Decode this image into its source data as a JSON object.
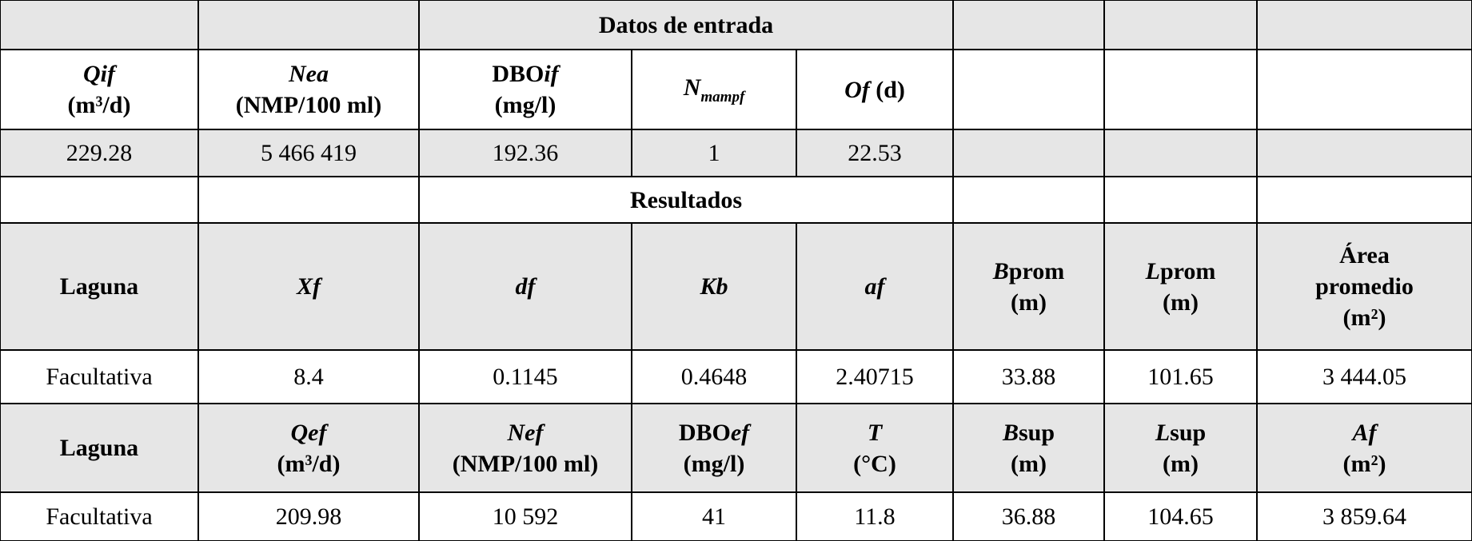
{
  "input": {
    "title": "Datos de entrada",
    "headers": [
      [
        [
          {
            "text": "Qif",
            "style": "italic"
          }
        ],
        [
          {
            "text": "(m³/d)"
          }
        ]
      ],
      [
        [
          {
            "text": "Nea",
            "style": "italic"
          }
        ],
        [
          {
            "text": "(NMP/100 ml)"
          }
        ]
      ],
      [
        [
          {
            "text": "DBO"
          },
          {
            "text": "if",
            "style": "italic"
          }
        ],
        [
          {
            "text": "(mg/l)"
          }
        ]
      ],
      [
        [
          {
            "text": "N",
            "style": "italic"
          },
          {
            "text": "mampf",
            "style": "sub"
          }
        ]
      ],
      [
        [
          {
            "text": "Of",
            "style": "italic"
          },
          {
            "text": " (d)"
          }
        ]
      ]
    ],
    "values": [
      "229.28",
      "5 466 419",
      "192.36",
      "1",
      "22.53"
    ]
  },
  "results": {
    "title": "Resultados",
    "blocks": [
      {
        "headers": [
          [
            [
              {
                "text": "Laguna"
              }
            ]
          ],
          [
            [
              {
                "text": "Xf",
                "style": "italic"
              }
            ]
          ],
          [
            [
              {
                "text": "df",
                "style": "italic"
              }
            ]
          ],
          [
            [
              {
                "text": "Kb",
                "style": "italic"
              }
            ]
          ],
          [
            [
              {
                "text": "af",
                "style": "italic"
              }
            ]
          ],
          [
            [
              {
                "text": "B",
                "style": "italic"
              },
              {
                "text": "prom"
              }
            ],
            [
              {
                "text": "(m)"
              }
            ]
          ],
          [
            [
              {
                "text": "L",
                "style": "italic"
              },
              {
                "text": "prom"
              }
            ],
            [
              {
                "text": "(m)"
              }
            ]
          ],
          [
            [
              {
                "text": "Área"
              }
            ],
            [
              {
                "text": "promedio"
              }
            ],
            [
              {
                "text": "(m²)"
              }
            ]
          ]
        ],
        "values": [
          "Facultativa",
          "8.4",
          "0.1145",
          "0.4648",
          "2.40715",
          "33.88",
          "101.65",
          "3 444.05"
        ]
      },
      {
        "headers": [
          [
            [
              {
                "text": "Laguna"
              }
            ]
          ],
          [
            [
              {
                "text": "Qef",
                "style": "italic"
              }
            ],
            [
              {
                "text": "(m³/d)"
              }
            ]
          ],
          [
            [
              {
                "text": "Nef",
                "style": "italic"
              }
            ],
            [
              {
                "text": "(NMP/100 ml)"
              }
            ]
          ],
          [
            [
              {
                "text": "DBO"
              },
              {
                "text": "ef",
                "style": "italic"
              }
            ],
            [
              {
                "text": "(mg/l)"
              }
            ]
          ],
          [
            [
              {
                "text": "T",
                "style": "italic"
              }
            ],
            [
              {
                "text": "(°C)"
              }
            ]
          ],
          [
            [
              {
                "text": "B",
                "style": "italic"
              },
              {
                "text": "sup"
              }
            ],
            [
              {
                "text": "(m)"
              }
            ]
          ],
          [
            [
              {
                "text": "L",
                "style": "italic"
              },
              {
                "text": "sup"
              }
            ],
            [
              {
                "text": "(m)"
              }
            ]
          ],
          [
            [
              {
                "text": "Af",
                "style": "italic"
              }
            ],
            [
              {
                "text": "(m²)"
              }
            ]
          ]
        ],
        "values": [
          "Facultativa",
          "209.98",
          "10 592",
          "41",
          "11.8",
          "36.88",
          "104.65",
          "3 859.64"
        ]
      }
    ]
  }
}
